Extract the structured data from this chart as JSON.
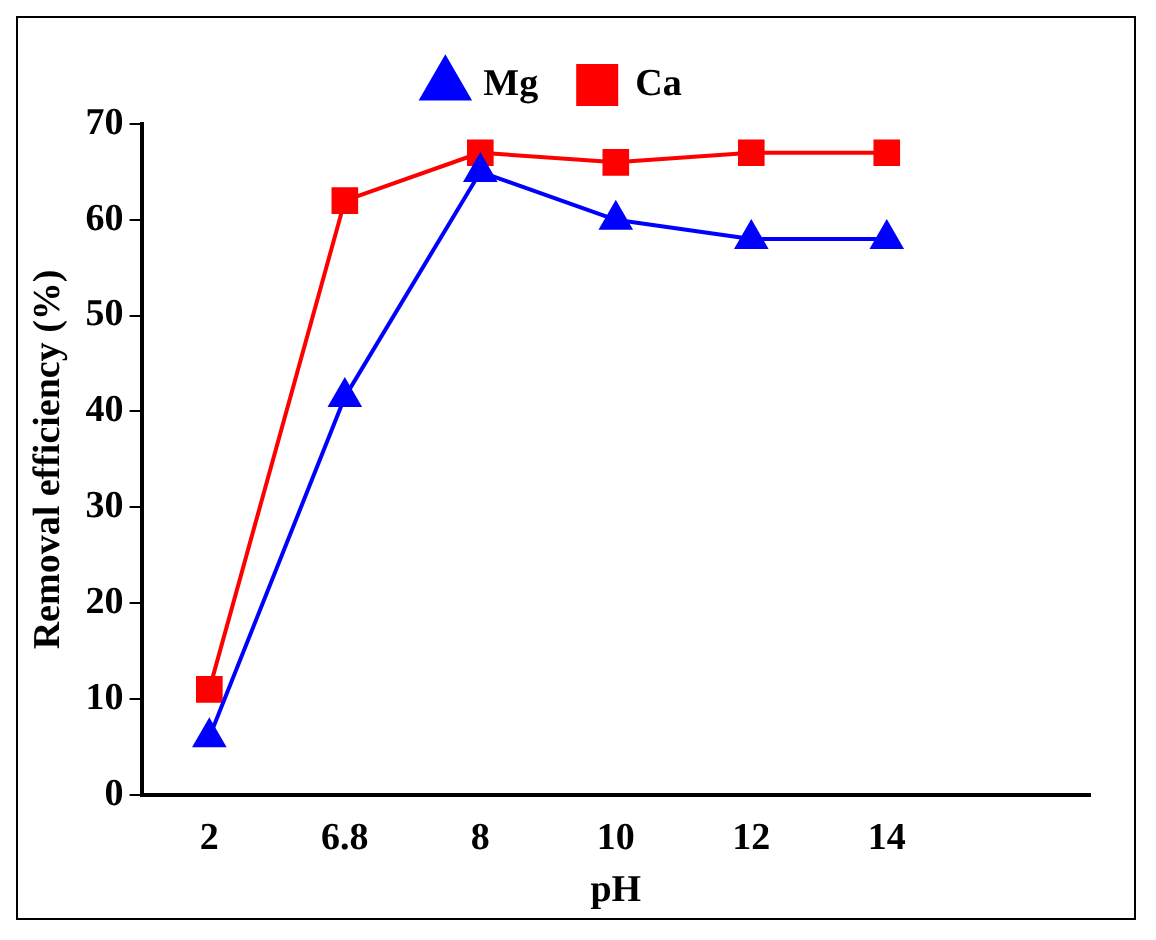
{
  "chart_data": {
    "type": "line",
    "xlabel": "pH",
    "ylabel": "Removal efficiency (%)",
    "categories": [
      "2",
      "6.8",
      "8",
      "10",
      "12",
      "14",
      null
    ],
    "series": [
      {
        "name": "Mg",
        "color": "#0000ff",
        "marker": "triangle",
        "values": [
          6,
          41.5,
          65,
          60,
          58,
          58,
          null
        ]
      },
      {
        "name": "Ca",
        "color": "#ff0000",
        "marker": "square",
        "values": [
          11,
          62,
          67,
          66,
          67,
          67,
          null
        ]
      }
    ],
    "ylim": [
      0,
      70
    ],
    "yticks": [
      0,
      10,
      20,
      30,
      40,
      50,
      60,
      70
    ],
    "grid": false,
    "legend": "top"
  }
}
